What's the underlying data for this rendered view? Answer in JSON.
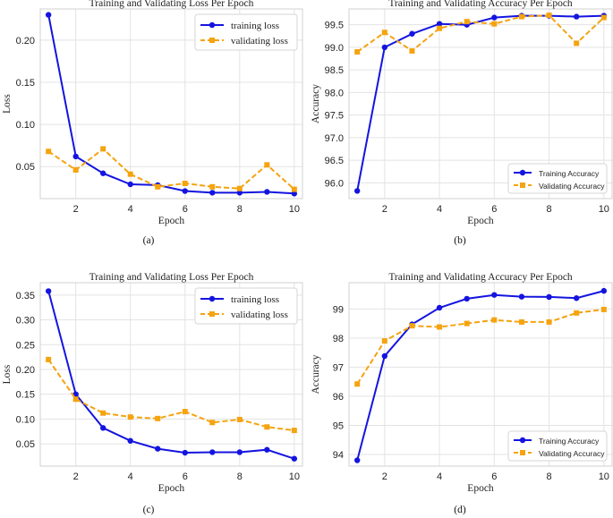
{
  "chart_data": [
    {
      "id": "a",
      "caption": "(a)",
      "type": "line",
      "title": "Training and Validating Loss Per Epoch",
      "xlabel": "Epoch",
      "ylabel": "Loss",
      "xlim": [
        0.7,
        10.3
      ],
      "ylim": [
        0.012,
        0.237
      ],
      "xticks": [
        2,
        4,
        6,
        8,
        10
      ],
      "yticks": [
        0.05,
        0.1,
        0.15,
        0.2
      ],
      "ytick_labels": [
        "0.05",
        "0.10",
        "0.15",
        "0.20"
      ],
      "legend_position": "top-right",
      "legend_style": "serif",
      "x": [
        1,
        2,
        3,
        4,
        5,
        6,
        7,
        8,
        9,
        10
      ],
      "series": [
        {
          "name": "training loss",
          "color": "#1414e0",
          "style": "solid",
          "marker": "circle",
          "values": [
            0.23,
            0.062,
            0.042,
            0.029,
            0.028,
            0.021,
            0.019,
            0.019,
            0.02,
            0.018
          ]
        },
        {
          "name": "validating loss",
          "color": "#f5a30f",
          "style": "dashed",
          "marker": "square",
          "values": [
            0.068,
            0.046,
            0.071,
            0.041,
            0.026,
            0.03,
            0.026,
            0.024,
            0.052,
            0.023
          ]
        }
      ]
    },
    {
      "id": "b",
      "caption": "(b)",
      "type": "line",
      "title": "Training and Validating Accuracy Per Epoch",
      "xlabel": "Epoch",
      "ylabel": "Accuracy",
      "xlim": [
        0.7,
        10.3
      ],
      "ylim": [
        95.65,
        99.85
      ],
      "xticks": [
        2,
        4,
        6,
        8,
        10
      ],
      "yticks": [
        96.0,
        96.5,
        97.0,
        97.5,
        98.0,
        98.5,
        99.0,
        99.5
      ],
      "ytick_labels": [
        "96.0",
        "96.5",
        "97.0",
        "97.5",
        "98.0",
        "98.5",
        "99.0",
        "99.5"
      ],
      "legend_position": "bottom-right",
      "legend_style": "sans",
      "x": [
        1,
        2,
        3,
        4,
        5,
        6,
        7,
        8,
        9,
        10
      ],
      "series": [
        {
          "name": "Training Accuracy",
          "color": "#1414e0",
          "style": "solid",
          "marker": "circle",
          "values": [
            95.82,
            99.0,
            99.3,
            99.52,
            99.5,
            99.66,
            99.7,
            99.7,
            99.68,
            99.7
          ]
        },
        {
          "name": "Validating Accuracy",
          "color": "#f5a30f",
          "style": "dashed",
          "marker": "square",
          "values": [
            98.9,
            99.33,
            98.92,
            99.42,
            99.57,
            99.52,
            99.68,
            99.71,
            99.09,
            99.66
          ]
        }
      ]
    },
    {
      "id": "c",
      "caption": "(c)",
      "type": "line",
      "title": "Training and Validating Loss Per Epoch",
      "xlabel": "Epoch",
      "ylabel": "Loss",
      "xlim": [
        0.7,
        10.3
      ],
      "ylim": [
        0.005,
        0.375
      ],
      "xticks": [
        2,
        4,
        6,
        8,
        10
      ],
      "yticks": [
        0.05,
        0.1,
        0.15,
        0.2,
        0.25,
        0.3,
        0.35
      ],
      "ytick_labels": [
        "0.05",
        "0.10",
        "0.15",
        "0.20",
        "0.25",
        "0.30",
        "0.35"
      ],
      "legend_position": "top-right",
      "legend_style": "serif",
      "x": [
        1,
        2,
        3,
        4,
        5,
        6,
        7,
        8,
        9,
        10
      ],
      "series": [
        {
          "name": "training loss",
          "color": "#1414e0",
          "style": "solid",
          "marker": "circle",
          "values": [
            0.358,
            0.15,
            0.082,
            0.056,
            0.04,
            0.032,
            0.033,
            0.033,
            0.038,
            0.02
          ]
        },
        {
          "name": "validating loss",
          "color": "#f5a30f",
          "style": "dashed",
          "marker": "square",
          "values": [
            0.22,
            0.14,
            0.112,
            0.104,
            0.101,
            0.115,
            0.093,
            0.099,
            0.084,
            0.077
          ]
        }
      ]
    },
    {
      "id": "d",
      "caption": "(d)",
      "type": "line",
      "title": "Training and Validating Accuracy Per Epoch",
      "xlabel": "Epoch",
      "ylabel": "Accuracy",
      "xlim": [
        0.7,
        10.3
      ],
      "ylim": [
        93.6,
        99.9
      ],
      "xticks": [
        2,
        4,
        6,
        8,
        10
      ],
      "yticks": [
        94,
        95,
        96,
        97,
        98,
        99
      ],
      "ytick_labels": [
        "94",
        "95",
        "96",
        "97",
        "98",
        "99"
      ],
      "legend_position": "bottom-right",
      "legend_style": "sans",
      "x": [
        1,
        2,
        3,
        4,
        5,
        6,
        7,
        8,
        9,
        10
      ],
      "series": [
        {
          "name": "Training Accuracy",
          "color": "#1414e0",
          "style": "solid",
          "marker": "circle",
          "values": [
            93.8,
            97.38,
            98.47,
            99.04,
            99.35,
            99.48,
            99.42,
            99.41,
            99.37,
            99.62
          ]
        },
        {
          "name": "Validating Accuracy",
          "color": "#f5a30f",
          "style": "dashed",
          "marker": "square",
          "values": [
            96.42,
            97.9,
            98.42,
            98.38,
            98.5,
            98.62,
            98.55,
            98.55,
            98.86,
            98.98
          ]
        }
      ]
    }
  ]
}
